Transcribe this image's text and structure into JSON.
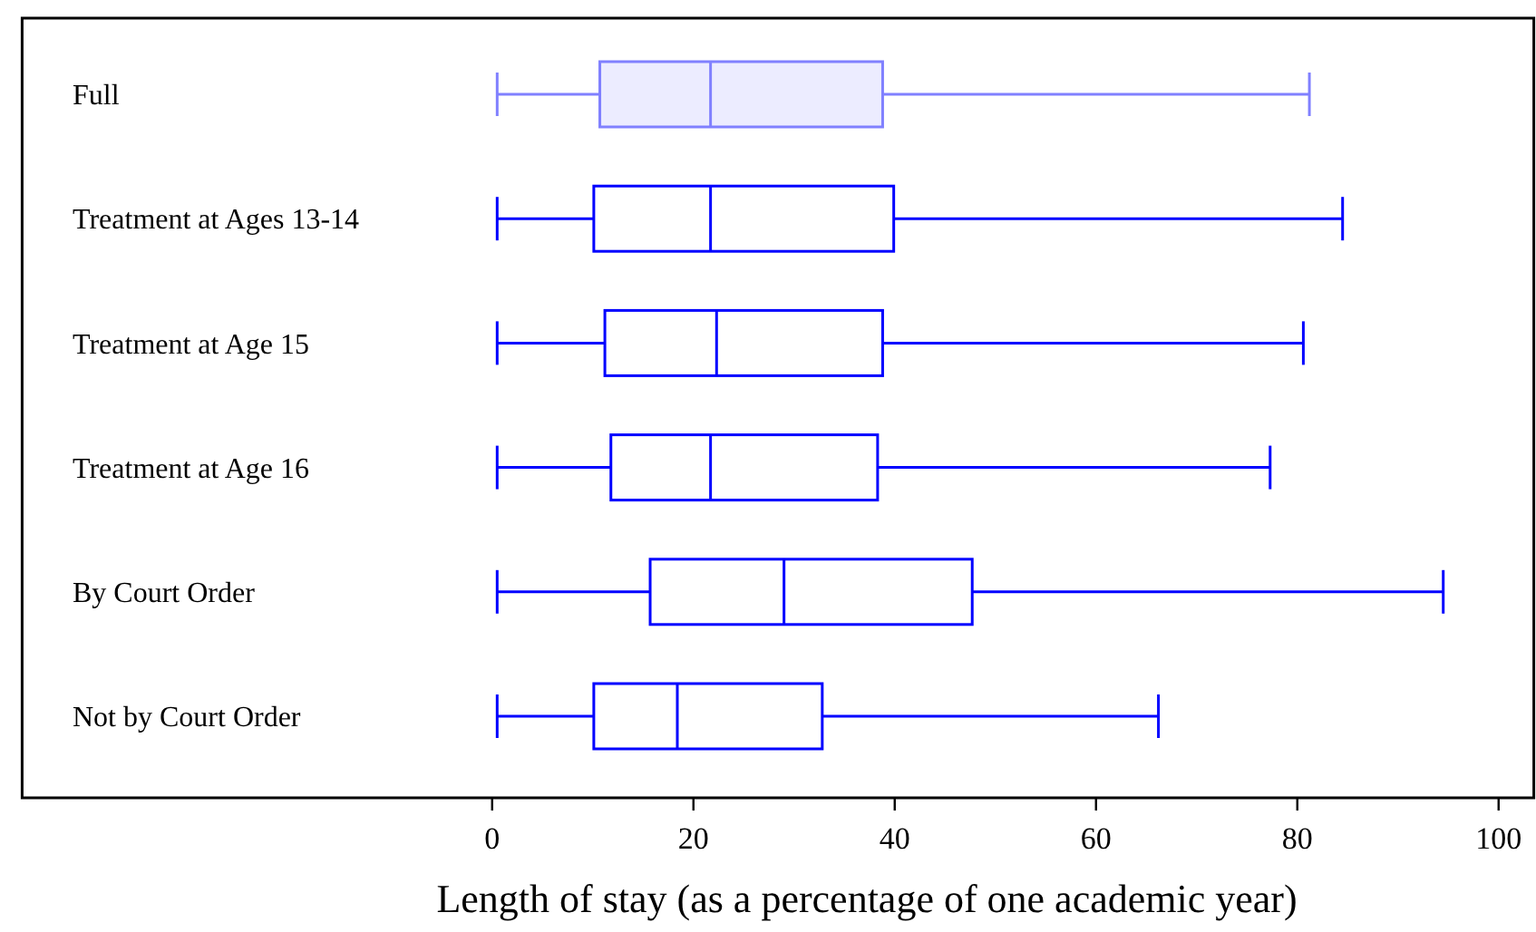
{
  "chart_data": {
    "type": "box",
    "orientation": "horizontal",
    "xlabel": "Length of stay (as a percentage of one academic year)",
    "categories": [
      "Full",
      "Treatment at Ages 13-14",
      "Treatment at Age 15",
      "Treatment at Age 16",
      "By Court Order",
      "Not by Court Order"
    ],
    "xlim": [
      -46.7,
      103.5
    ],
    "xticks": [
      0,
      20,
      40,
      60,
      80,
      100
    ],
    "grid": false,
    "series": [
      {
        "color": "#8080ff",
        "boxes": [
          {
            "low": 0.5,
            "q1": 10.7,
            "median": 21.7,
            "q3": 38.8,
            "high": 81.2
          },
          null,
          null,
          null,
          null,
          null
        ]
      },
      {
        "color": "#0000ff",
        "boxes": [
          null,
          {
            "low": 0.5,
            "q1": 10.1,
            "median": 21.7,
            "q3": 39.9,
            "high": 84.5
          },
          {
            "low": 0.5,
            "q1": 11.2,
            "median": 22.3,
            "q3": 38.8,
            "high": 80.6
          },
          {
            "low": 0.5,
            "q1": 11.8,
            "median": 21.7,
            "q3": 38.3,
            "high": 77.3
          },
          {
            "low": 0.5,
            "q1": 15.7,
            "median": 29.0,
            "q3": 47.7,
            "high": 94.5
          },
          {
            "low": 0.5,
            "q1": 10.1,
            "median": 18.4,
            "q3": 32.8,
            "high": 66.2
          }
        ]
      }
    ]
  }
}
